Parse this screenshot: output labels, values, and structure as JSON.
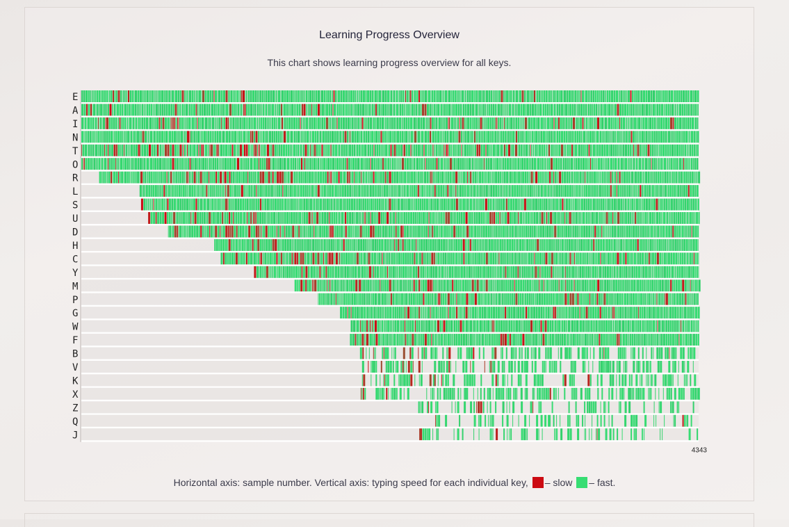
{
  "card": {
    "title": "Learning Progress Overview",
    "subtitle": "This chart shows learning progress overview for all keys."
  },
  "footnote": {
    "text_before": "Horizontal axis: sample number. Vertical axis: typing speed for each individual key,",
    "slow_text": "– slow",
    "fast_text": "– fast."
  },
  "colors": {
    "slow": "#cc0a12",
    "fast": "#37dd73",
    "row_background": "#e4e0df",
    "gap": "#ffffff"
  },
  "chart_data": {
    "type": "heatmap",
    "title": "Learning Progress Overview",
    "x_axis": {
      "label": "sample number",
      "max_tick": "4343",
      "range": [
        0,
        4343
      ]
    },
    "y_axis": {
      "label": "key"
    },
    "rows": [
      {
        "key": "E",
        "start": 0,
        "slowness": 0.05
      },
      {
        "key": "A",
        "start": 0,
        "slowness": 0.05
      },
      {
        "key": "I",
        "start": 0,
        "slowness": 0.12
      },
      {
        "key": "N",
        "start": 0,
        "slowness": 0.04
      },
      {
        "key": "T",
        "start": 0,
        "slowness": 0.18
      },
      {
        "key": "O",
        "start": 0,
        "slowness": 0.06
      },
      {
        "key": "R",
        "start": 125,
        "slowness": 0.16
      },
      {
        "key": "L",
        "start": 410,
        "slowness": 0.06
      },
      {
        "key": "S",
        "start": 420,
        "slowness": 0.07
      },
      {
        "key": "U",
        "start": 470,
        "slowness": 0.18
      },
      {
        "key": "D",
        "start": 610,
        "slowness": 0.14
      },
      {
        "key": "H",
        "start": 935,
        "slowness": 0.07
      },
      {
        "key": "C",
        "start": 980,
        "slowness": 0.12
      },
      {
        "key": "Y",
        "start": 1215,
        "slowness": 0.09
      },
      {
        "key": "M",
        "start": 1500,
        "slowness": 0.1
      },
      {
        "key": "P",
        "start": 1665,
        "slowness": 0.09
      },
      {
        "key": "G",
        "start": 1820,
        "slowness": 0.1
      },
      {
        "key": "W",
        "start": 1895,
        "slowness": 0.11
      },
      {
        "key": "F",
        "start": 1890,
        "slowness": 0.1
      },
      {
        "key": "B",
        "start": 1960,
        "slowness": 0.09
      },
      {
        "key": "V",
        "start": 1975,
        "slowness": 0.11
      },
      {
        "key": "K",
        "start": 1975,
        "slowness": 0.08
      },
      {
        "key": "X",
        "start": 1965,
        "slowness": 0.06
      },
      {
        "key": "Z",
        "start": 2370,
        "slowness": 0.08
      },
      {
        "key": "Q",
        "start": 2490,
        "slowness": 0.06
      },
      {
        "key": "J",
        "start": 2370,
        "slowness": 0.08
      }
    ]
  }
}
